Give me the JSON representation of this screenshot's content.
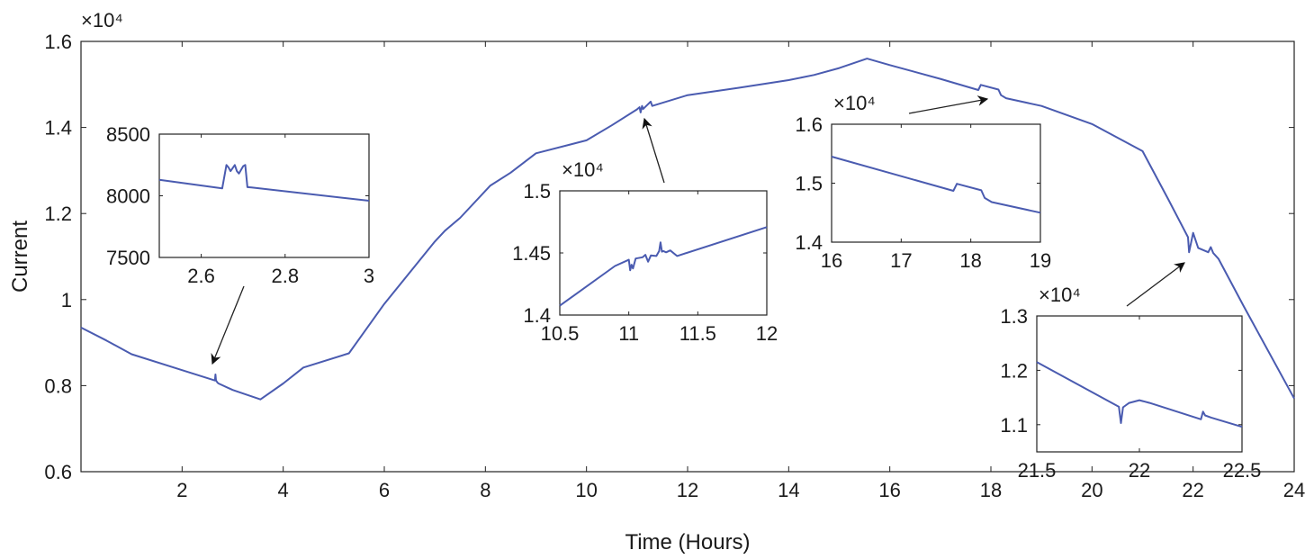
{
  "colors": {
    "series": "#4a5bb0",
    "axis": "#222222",
    "text": "#1a1a1a"
  },
  "chart_data": [
    {
      "id": "main",
      "type": "line",
      "xlabel": "Time (Hours)",
      "ylabel": "Current",
      "multiplier": "×10⁴",
      "xlim": [
        0,
        24
      ],
      "ylim": [
        0.6,
        1.6
      ],
      "xticks": [
        2,
        4,
        6,
        8,
        10,
        12,
        14,
        16,
        18,
        20,
        22,
        24
      ],
      "yticks": [
        0.6,
        0.8,
        1.0,
        1.2,
        1.4,
        1.6
      ],
      "xtick_labels": [
        "2",
        "4",
        "6",
        "8",
        "10",
        "12",
        "14",
        "16",
        "18",
        "20",
        "22",
        "24"
      ],
      "ytick_labels": [
        "0.6",
        "0.8",
        "1",
        "1.2",
        "1.4",
        "1.6"
      ],
      "series": [
        {
          "x": [
            0,
            0.5,
            1.0,
            2.0,
            2.65,
            2.66,
            2.67,
            2.7,
            2.72,
            3.0,
            3.55,
            4.0,
            4.4,
            5.3,
            6.0,
            7.0,
            7.2,
            7.5,
            8.1,
            8.5,
            9.0,
            10.0,
            10.5,
            11.0,
            11.05,
            11.07,
            11.1,
            11.12,
            11.2,
            11.27,
            11.3,
            12.0,
            13.0,
            14.0,
            14.5,
            15.0,
            15.55,
            16.0,
            17.0,
            17.75,
            17.8,
            18.15,
            18.2,
            18.3,
            19.0,
            20.0,
            21.0,
            21.5,
            21.9,
            21.92,
            22.0,
            22.1,
            22.3,
            22.35,
            22.4,
            22.5,
            23.0,
            24.0
          ],
          "y": [
            0.935,
            0.905,
            0.873,
            0.836,
            0.812,
            0.826,
            0.812,
            0.807,
            0.805,
            0.79,
            0.768,
            0.805,
            0.842,
            0.875,
            0.99,
            1.135,
            1.16,
            1.19,
            1.265,
            1.295,
            1.34,
            1.37,
            1.405,
            1.442,
            1.447,
            1.435,
            1.45,
            1.443,
            1.452,
            1.46,
            1.45,
            1.475,
            1.492,
            1.51,
            1.522,
            1.538,
            1.56,
            1.545,
            1.513,
            1.487,
            1.499,
            1.488,
            1.475,
            1.468,
            1.45,
            1.408,
            1.345,
            1.235,
            1.145,
            1.11,
            1.155,
            1.12,
            1.11,
            1.122,
            1.108,
            1.095,
            0.985,
            0.77
          ]
        }
      ]
    },
    {
      "id": "inset1",
      "type": "line",
      "multiplier": "",
      "xlim": [
        2.5,
        3.0
      ],
      "ylim": [
        7500,
        8500
      ],
      "xticks": [
        2.6,
        2.8,
        3.0
      ],
      "yticks": [
        7500,
        8000,
        8500
      ],
      "xtick_labels": [
        "2.6",
        "2.8",
        "3"
      ],
      "ytick_labels": [
        "7500",
        "8000",
        "8500"
      ],
      "series": [
        {
          "x": [
            2.5,
            2.65,
            2.66,
            2.665,
            2.67,
            2.68,
            2.685,
            2.69,
            2.7,
            2.705,
            2.71,
            2.72,
            3.0
          ],
          "y": [
            8130,
            8060,
            8250,
            8230,
            8200,
            8250,
            8200,
            8180,
            8240,
            8250,
            8070,
            8068,
            7960
          ]
        }
      ]
    },
    {
      "id": "inset2",
      "type": "line",
      "multiplier": "×10⁴",
      "xlim": [
        10.5,
        12.0
      ],
      "ylim": [
        1.4,
        1.5
      ],
      "xticks": [
        10.5,
        11.0,
        11.5,
        12.0
      ],
      "yticks": [
        1.4,
        1.45,
        1.5
      ],
      "xtick_labels": [
        "10.5",
        "11",
        "11.5",
        "12"
      ],
      "ytick_labels": [
        "1.4",
        "1.45",
        "1.5"
      ],
      "series": [
        {
          "x": [
            10.5,
            10.9,
            11.0,
            11.01,
            11.02,
            11.03,
            11.05,
            11.1,
            11.12,
            11.14,
            11.16,
            11.2,
            11.22,
            11.23,
            11.24,
            11.25,
            11.27,
            11.3,
            11.35,
            12.0
          ],
          "y": [
            1.4075,
            1.4395,
            1.4445,
            1.436,
            1.4405,
            1.4375,
            1.4455,
            1.4465,
            1.4485,
            1.443,
            1.448,
            1.4475,
            1.4515,
            1.4585,
            1.451,
            1.4515,
            1.4505,
            1.452,
            1.4475,
            1.4708
          ]
        }
      ]
    },
    {
      "id": "inset3",
      "type": "line",
      "multiplier": "×10⁴",
      "xlim": [
        16,
        19
      ],
      "ylim": [
        1.4,
        1.6
      ],
      "xticks": [
        16,
        17,
        18,
        19
      ],
      "yticks": [
        1.4,
        1.5,
        1.6
      ],
      "xtick_labels": [
        "16",
        "17",
        "18",
        "19"
      ],
      "ytick_labels": [
        "1.4",
        "1.5",
        "1.6"
      ],
      "series": [
        {
          "x": [
            16.0,
            17.75,
            17.8,
            18.15,
            18.2,
            18.3,
            19.0
          ],
          "y": [
            1.545,
            1.487,
            1.499,
            1.488,
            1.475,
            1.468,
            1.45
          ]
        }
      ]
    },
    {
      "id": "inset4",
      "type": "line",
      "multiplier": "×10⁴",
      "xlim": [
        21.5,
        22.5
      ],
      "ylim": [
        1.05,
        1.3
      ],
      "xticks": [
        21.5,
        22.0,
        22.5
      ],
      "yticks": [
        1.1,
        1.2,
        1.3
      ],
      "xtick_labels": [
        "21.5",
        "22",
        "22.5"
      ],
      "ytick_labels": [
        "1.1",
        "1.2",
        "1.3"
      ],
      "series": [
        {
          "x": [
            21.5,
            21.9,
            21.91,
            21.92,
            21.95,
            22.0,
            22.05,
            22.3,
            22.31,
            22.32,
            22.35,
            22.5
          ],
          "y": [
            1.215,
            1.133,
            1.103,
            1.132,
            1.14,
            1.145,
            1.14,
            1.11,
            1.124,
            1.117,
            1.113,
            1.096
          ]
        }
      ]
    }
  ]
}
